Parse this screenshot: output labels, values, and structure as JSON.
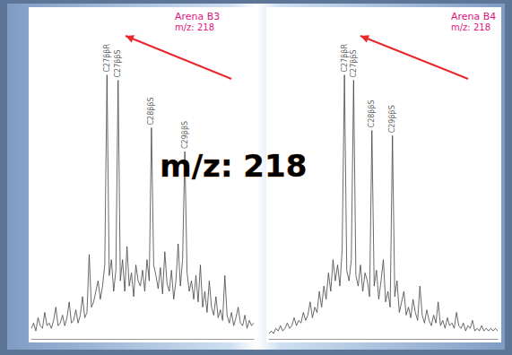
{
  "caption": "m/z: 218",
  "chart_data": [
    {
      "type": "line",
      "title": "Arena B3",
      "subtitle": "m/z: 218",
      "color": "#444444",
      "x": [
        0,
        1,
        2,
        3,
        4,
        5,
        6,
        7,
        8,
        9,
        10,
        11,
        12,
        13,
        14,
        15,
        16,
        17,
        18,
        19,
        20,
        21,
        22,
        23,
        24,
        25,
        26,
        27,
        28,
        29,
        30,
        31,
        32,
        33,
        34,
        35,
        36,
        37,
        38,
        39,
        40,
        41,
        42,
        43,
        44,
        45,
        46,
        47,
        48,
        49,
        50,
        51,
        52,
        53,
        54,
        55,
        56,
        57,
        58,
        59,
        60,
        61,
        62,
        63,
        64,
        65,
        66,
        67,
        68,
        69,
        70,
        71,
        72,
        73,
        74,
        75,
        76,
        77,
        78,
        79,
        80,
        81,
        82,
        83,
        84,
        85,
        86,
        87,
        88,
        89,
        90,
        91,
        92,
        93,
        94,
        95,
        96,
        97,
        98,
        99,
        100
      ],
      "values": [
        4,
        6,
        3,
        8,
        5,
        4,
        10,
        5,
        6,
        4,
        7,
        12,
        5,
        6,
        9,
        5,
        8,
        14,
        6,
        7,
        11,
        6,
        9,
        16,
        8,
        10,
        32,
        12,
        14,
        18,
        22,
        15,
        20,
        28,
        100,
        24,
        30,
        18,
        26,
        98,
        22,
        30,
        18,
        35,
        20,
        25,
        16,
        28,
        22,
        20,
        26,
        18,
        30,
        22,
        80,
        28,
        24,
        19,
        27,
        17,
        33,
        21,
        18,
        26,
        15,
        22,
        36,
        20,
        30,
        71,
        25,
        18,
        22,
        15,
        24,
        14,
        28,
        12,
        18,
        10,
        22,
        12,
        9,
        16,
        8,
        11,
        7,
        24,
        9,
        6,
        10,
        5,
        8,
        12,
        6,
        5,
        9,
        4,
        7,
        5,
        6
      ],
      "peaks": [
        {
          "x": 34,
          "label": "C27ββR"
        },
        {
          "x": 39,
          "label": "C27ββS"
        },
        {
          "x": 54,
          "label": "C28ββS"
        },
        {
          "x": 69,
          "label": "C29ββS"
        }
      ],
      "xlim": [
        0,
        100
      ],
      "ylim": [
        0,
        125
      ],
      "grid": false,
      "tick_labels": false
    },
    {
      "type": "line",
      "title": "Arena B4",
      "subtitle": "m/z: 218",
      "color": "#444444",
      "x": [
        0,
        1,
        2,
        3,
        4,
        5,
        6,
        7,
        8,
        9,
        10,
        11,
        12,
        13,
        14,
        15,
        16,
        17,
        18,
        19,
        20,
        21,
        22,
        23,
        24,
        25,
        26,
        27,
        28,
        29,
        30,
        31,
        32,
        33,
        34,
        35,
        36,
        37,
        38,
        39,
        40,
        41,
        42,
        43,
        44,
        45,
        46,
        47,
        48,
        49,
        50,
        51,
        52,
        53,
        54,
        55,
        56,
        57,
        58,
        59,
        60,
        61,
        62,
        63,
        64,
        65,
        66,
        67,
        68,
        69,
        70,
        71,
        72,
        73,
        74,
        75,
        76,
        77,
        78,
        79,
        80,
        81,
        82,
        83,
        84,
        85,
        86,
        87,
        88,
        89,
        90,
        91,
        92,
        93,
        94,
        95,
        96,
        97,
        98,
        99,
        100
      ],
      "values": [
        2,
        3,
        2,
        4,
        3,
        5,
        3,
        4,
        6,
        4,
        5,
        8,
        5,
        7,
        6,
        10,
        7,
        9,
        14,
        8,
        12,
        10,
        18,
        12,
        20,
        15,
        25,
        18,
        30,
        22,
        28,
        20,
        34,
        100,
        26,
        22,
        30,
        98,
        24,
        20,
        28,
        18,
        25,
        22,
        16,
        79,
        20,
        26,
        15,
        22,
        30,
        14,
        18,
        12,
        77,
        16,
        22,
        10,
        14,
        18,
        9,
        12,
        8,
        15,
        10,
        7,
        20,
        9,
        6,
        11,
        7,
        5,
        9,
        6,
        14,
        5,
        7,
        4,
        8,
        5,
        6,
        4,
        10,
        5,
        4,
        6,
        3,
        5,
        4,
        7,
        3,
        4,
        3,
        5,
        3,
        4,
        3,
        4,
        3,
        4,
        3
      ],
      "peaks": [
        {
          "x": 33,
          "label": "C27ββR"
        },
        {
          "x": 37,
          "label": "C27ββS"
        },
        {
          "x": 45,
          "label": "C28ββS"
        },
        {
          "x": 54,
          "label": "C29ββS"
        }
      ],
      "xlim": [
        0,
        100
      ],
      "ylim": [
        0,
        125
      ],
      "grid": false,
      "tick_labels": false
    }
  ]
}
